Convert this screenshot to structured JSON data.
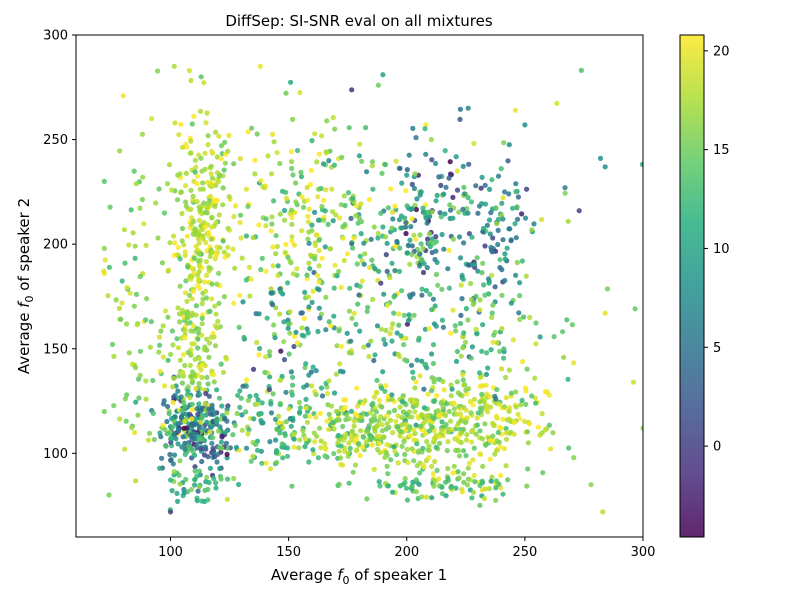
{
  "chart_data": {
    "type": "scatter",
    "title": "DiffSep: SI-SNR eval on all mixtures",
    "xlabel": {
      "prefix": "Average ",
      "var": "f",
      "sub": "0",
      "suffix": " of speaker 1"
    },
    "ylabel": {
      "prefix": "Average ",
      "var": "f",
      "sub": "0",
      "suffix": " of speaker 2"
    },
    "xlim": [
      60,
      300
    ],
    "ylim": [
      60,
      300
    ],
    "xticks": [
      100,
      150,
      200,
      250,
      300
    ],
    "yticks": [
      100,
      150,
      200,
      250,
      300
    ],
    "grid": false,
    "colorbar": {
      "colormap": "viridis",
      "range": [
        -4.6,
        20.8
      ],
      "ticks": [
        0,
        5,
        10,
        15,
        20
      ]
    },
    "clusters": [
      {
        "x": 110,
        "y": 112,
        "sx": 7,
        "sy": 9,
        "n": 260,
        "c": 7,
        "sc": 6
      },
      {
        "x": 112,
        "y": 205,
        "sx": 7,
        "sy": 28,
        "n": 300,
        "c": 18,
        "sc": 2
      },
      {
        "x": 110,
        "y": 145,
        "sx": 8,
        "sy": 15,
        "n": 110,
        "c": 17,
        "sc": 2.5
      },
      {
        "x": 112,
        "y": 85,
        "sx": 8,
        "sy": 5,
        "n": 45,
        "c": 12,
        "sc": 3
      },
      {
        "x": 85,
        "y": 160,
        "sx": 6,
        "sy": 45,
        "n": 80,
        "c": 16,
        "sc": 2
      },
      {
        "x": 150,
        "y": 210,
        "sx": 15,
        "sy": 25,
        "n": 170,
        "c": 17,
        "sc": 3
      },
      {
        "x": 150,
        "y": 115,
        "sx": 15,
        "sy": 10,
        "n": 150,
        "c": 13,
        "sc": 4
      },
      {
        "x": 150,
        "y": 155,
        "sx": 14,
        "sy": 18,
        "n": 80,
        "c": 11,
        "sc": 5
      },
      {
        "x": 175,
        "y": 200,
        "sx": 12,
        "sy": 35,
        "n": 120,
        "c": 15,
        "sc": 4
      },
      {
        "x": 175,
        "y": 112,
        "sx": 12,
        "sy": 10,
        "n": 110,
        "c": 17,
        "sc": 3
      },
      {
        "x": 205,
        "y": 210,
        "sx": 12,
        "sy": 20,
        "n": 170,
        "c": 9,
        "sc": 6
      },
      {
        "x": 205,
        "y": 112,
        "sx": 15,
        "sy": 10,
        "n": 280,
        "c": 17,
        "sc": 2.5
      },
      {
        "x": 205,
        "y": 160,
        "sx": 13,
        "sy": 22,
        "n": 110,
        "c": 14,
        "sc": 4
      },
      {
        "x": 205,
        "y": 85,
        "sx": 10,
        "sy": 4,
        "n": 40,
        "c": 13,
        "sc": 3
      },
      {
        "x": 235,
        "y": 205,
        "sx": 10,
        "sy": 18,
        "n": 110,
        "c": 9,
        "sc": 5
      },
      {
        "x": 235,
        "y": 115,
        "sx": 12,
        "sy": 12,
        "n": 160,
        "c": 18,
        "sc": 2.5
      },
      {
        "x": 235,
        "y": 160,
        "sx": 10,
        "sy": 20,
        "n": 60,
        "c": 14,
        "sc": 4
      },
      {
        "x": 230,
        "y": 85,
        "sx": 12,
        "sy": 4,
        "n": 40,
        "c": 15,
        "sc": 3
      },
      {
        "x": 270,
        "y": 160,
        "sx": 12,
        "sy": 45,
        "n": 20,
        "c": 16,
        "sc": 3
      }
    ],
    "outliers": [
      [
        108,
        283,
        19
      ],
      [
        113,
        280,
        14
      ],
      [
        138,
        285,
        20
      ],
      [
        188,
        276,
        15
      ],
      [
        226,
        265,
        7
      ],
      [
        246,
        264,
        20
      ],
      [
        250,
        257,
        8
      ],
      [
        267,
        227,
        6
      ],
      [
        273,
        216,
        0
      ],
      [
        282,
        241,
        8
      ],
      [
        284,
        237,
        8
      ],
      [
        284,
        167,
        20
      ],
      [
        296,
        134,
        19
      ],
      [
        300,
        112,
        16
      ],
      [
        283,
        72,
        18
      ],
      [
        278,
        85,
        16
      ],
      [
        72,
        230,
        14
      ],
      [
        72,
        198,
        16
      ],
      [
        72,
        186,
        20
      ],
      [
        72,
        120,
        15
      ],
      [
        100,
        72,
        0
      ],
      [
        103,
        77,
        10
      ],
      [
        80,
        271,
        20
      ],
      [
        92,
        260,
        19
      ]
    ]
  }
}
